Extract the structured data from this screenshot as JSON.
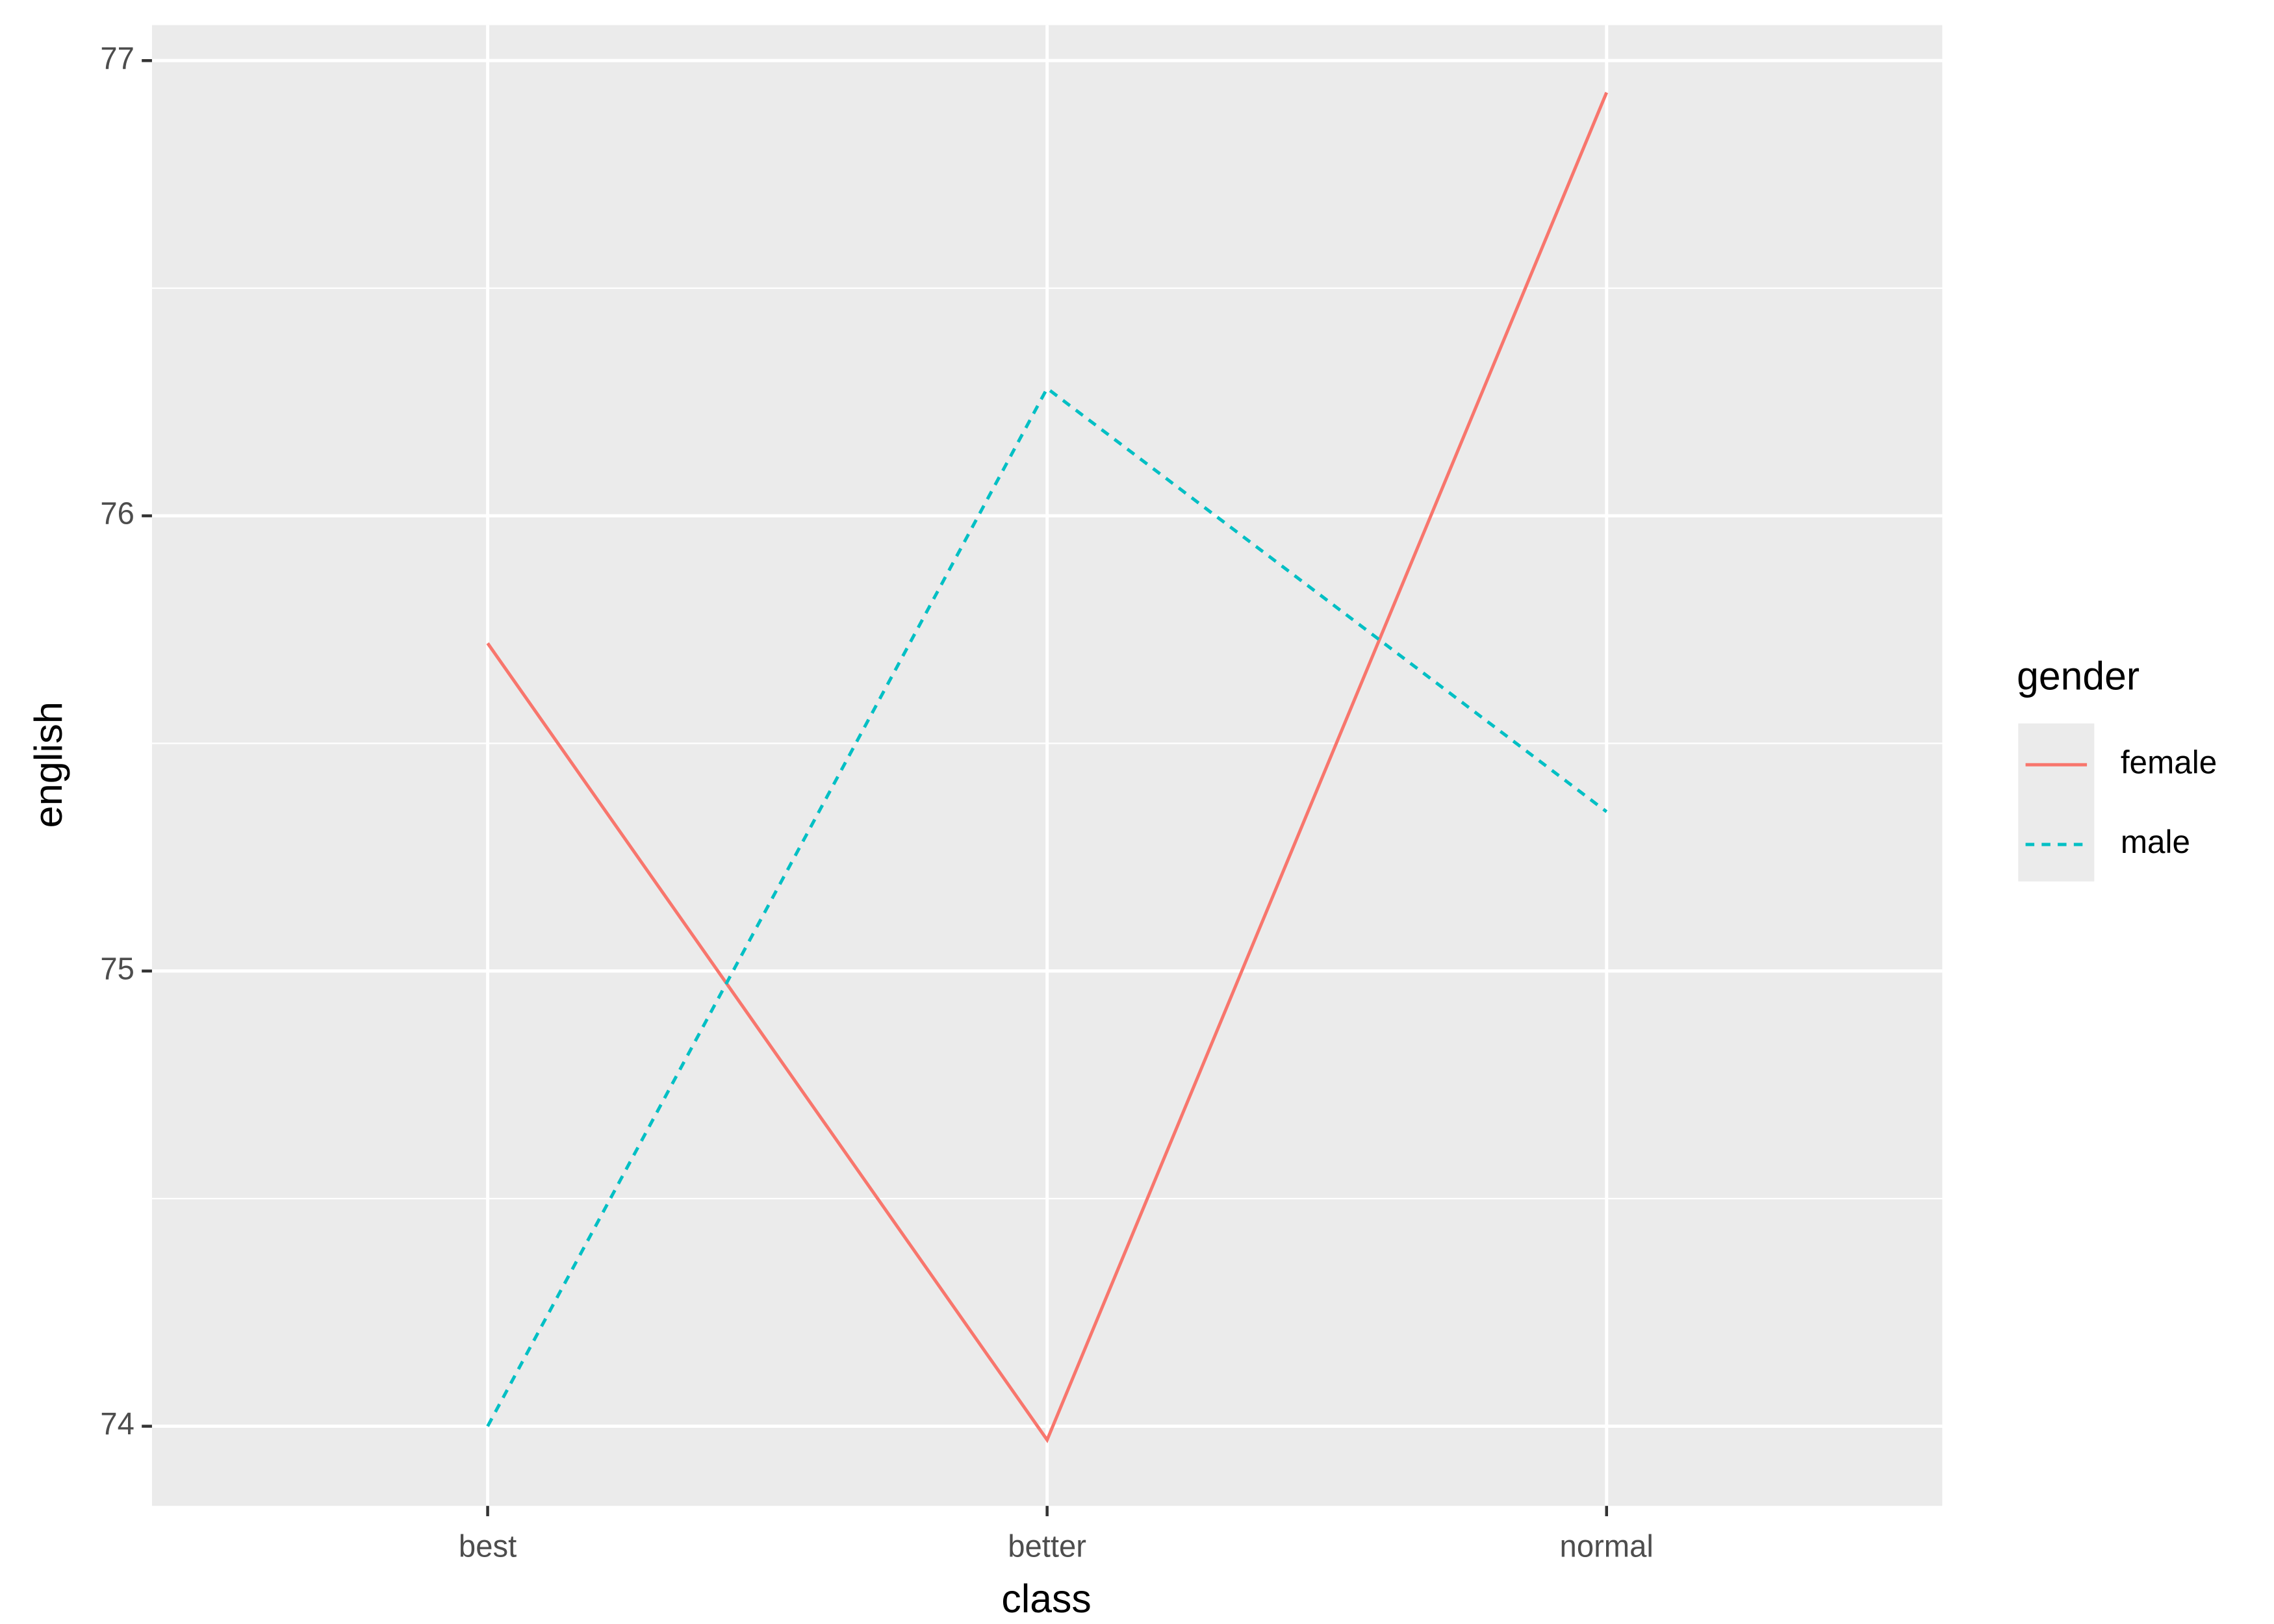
{
  "chart_data": {
    "type": "line",
    "x_label": "class",
    "y_label": "english",
    "categories": [
      "best",
      "better",
      "normal"
    ],
    "series": [
      {
        "name": "female",
        "color": "#F8766D",
        "linetype": "solid",
        "values": [
          75.72,
          73.97,
          76.93
        ]
      },
      {
        "name": "male",
        "color": "#00BFC4",
        "linetype": "dashed",
        "values": [
          74.0,
          76.28,
          75.35
        ]
      }
    ],
    "legend_title": "gender",
    "legend_position": "right",
    "ylim": [
      73.825,
      77.078
    ],
    "yticks": [
      74,
      75,
      76,
      77
    ],
    "yminorticks": [
      74.5,
      75.5,
      76.5
    ],
    "grid": true,
    "panel_background": "#EBEBEB"
  }
}
